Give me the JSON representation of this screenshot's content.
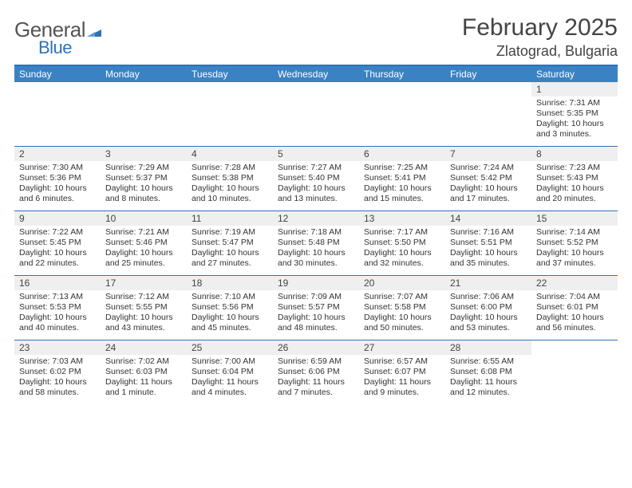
{
  "logo": {
    "text1": "General",
    "text2": "Blue",
    "flag_color": "#2e72b8"
  },
  "header": {
    "title": "February 2025",
    "location": "Zlatograd, Bulgaria"
  },
  "colors": {
    "header_bar": "#3b82c4",
    "header_text": "#ffffff",
    "rule": "#2e72b8",
    "daynum_bg": "#efefef",
    "text": "#333333"
  },
  "dow": [
    "Sunday",
    "Monday",
    "Tuesday",
    "Wednesday",
    "Thursday",
    "Friday",
    "Saturday"
  ],
  "weeks": [
    [
      {
        "n": "",
        "sunrise": "",
        "sunset": "",
        "daylight": ""
      },
      {
        "n": "",
        "sunrise": "",
        "sunset": "",
        "daylight": ""
      },
      {
        "n": "",
        "sunrise": "",
        "sunset": "",
        "daylight": ""
      },
      {
        "n": "",
        "sunrise": "",
        "sunset": "",
        "daylight": ""
      },
      {
        "n": "",
        "sunrise": "",
        "sunset": "",
        "daylight": ""
      },
      {
        "n": "",
        "sunrise": "",
        "sunset": "",
        "daylight": ""
      },
      {
        "n": "1",
        "sunrise": "Sunrise: 7:31 AM",
        "sunset": "Sunset: 5:35 PM",
        "daylight": "Daylight: 10 hours and 3 minutes."
      }
    ],
    [
      {
        "n": "2",
        "sunrise": "Sunrise: 7:30 AM",
        "sunset": "Sunset: 5:36 PM",
        "daylight": "Daylight: 10 hours and 6 minutes."
      },
      {
        "n": "3",
        "sunrise": "Sunrise: 7:29 AM",
        "sunset": "Sunset: 5:37 PM",
        "daylight": "Daylight: 10 hours and 8 minutes."
      },
      {
        "n": "4",
        "sunrise": "Sunrise: 7:28 AM",
        "sunset": "Sunset: 5:38 PM",
        "daylight": "Daylight: 10 hours and 10 minutes."
      },
      {
        "n": "5",
        "sunrise": "Sunrise: 7:27 AM",
        "sunset": "Sunset: 5:40 PM",
        "daylight": "Daylight: 10 hours and 13 minutes."
      },
      {
        "n": "6",
        "sunrise": "Sunrise: 7:25 AM",
        "sunset": "Sunset: 5:41 PM",
        "daylight": "Daylight: 10 hours and 15 minutes."
      },
      {
        "n": "7",
        "sunrise": "Sunrise: 7:24 AM",
        "sunset": "Sunset: 5:42 PM",
        "daylight": "Daylight: 10 hours and 17 minutes."
      },
      {
        "n": "8",
        "sunrise": "Sunrise: 7:23 AM",
        "sunset": "Sunset: 5:43 PM",
        "daylight": "Daylight: 10 hours and 20 minutes."
      }
    ],
    [
      {
        "n": "9",
        "sunrise": "Sunrise: 7:22 AM",
        "sunset": "Sunset: 5:45 PM",
        "daylight": "Daylight: 10 hours and 22 minutes."
      },
      {
        "n": "10",
        "sunrise": "Sunrise: 7:21 AM",
        "sunset": "Sunset: 5:46 PM",
        "daylight": "Daylight: 10 hours and 25 minutes."
      },
      {
        "n": "11",
        "sunrise": "Sunrise: 7:19 AM",
        "sunset": "Sunset: 5:47 PM",
        "daylight": "Daylight: 10 hours and 27 minutes."
      },
      {
        "n": "12",
        "sunrise": "Sunrise: 7:18 AM",
        "sunset": "Sunset: 5:48 PM",
        "daylight": "Daylight: 10 hours and 30 minutes."
      },
      {
        "n": "13",
        "sunrise": "Sunrise: 7:17 AM",
        "sunset": "Sunset: 5:50 PM",
        "daylight": "Daylight: 10 hours and 32 minutes."
      },
      {
        "n": "14",
        "sunrise": "Sunrise: 7:16 AM",
        "sunset": "Sunset: 5:51 PM",
        "daylight": "Daylight: 10 hours and 35 minutes."
      },
      {
        "n": "15",
        "sunrise": "Sunrise: 7:14 AM",
        "sunset": "Sunset: 5:52 PM",
        "daylight": "Daylight: 10 hours and 37 minutes."
      }
    ],
    [
      {
        "n": "16",
        "sunrise": "Sunrise: 7:13 AM",
        "sunset": "Sunset: 5:53 PM",
        "daylight": "Daylight: 10 hours and 40 minutes."
      },
      {
        "n": "17",
        "sunrise": "Sunrise: 7:12 AM",
        "sunset": "Sunset: 5:55 PM",
        "daylight": "Daylight: 10 hours and 43 minutes."
      },
      {
        "n": "18",
        "sunrise": "Sunrise: 7:10 AM",
        "sunset": "Sunset: 5:56 PM",
        "daylight": "Daylight: 10 hours and 45 minutes."
      },
      {
        "n": "19",
        "sunrise": "Sunrise: 7:09 AM",
        "sunset": "Sunset: 5:57 PM",
        "daylight": "Daylight: 10 hours and 48 minutes."
      },
      {
        "n": "20",
        "sunrise": "Sunrise: 7:07 AM",
        "sunset": "Sunset: 5:58 PM",
        "daylight": "Daylight: 10 hours and 50 minutes."
      },
      {
        "n": "21",
        "sunrise": "Sunrise: 7:06 AM",
        "sunset": "Sunset: 6:00 PM",
        "daylight": "Daylight: 10 hours and 53 minutes."
      },
      {
        "n": "22",
        "sunrise": "Sunrise: 7:04 AM",
        "sunset": "Sunset: 6:01 PM",
        "daylight": "Daylight: 10 hours and 56 minutes."
      }
    ],
    [
      {
        "n": "23",
        "sunrise": "Sunrise: 7:03 AM",
        "sunset": "Sunset: 6:02 PM",
        "daylight": "Daylight: 10 hours and 58 minutes."
      },
      {
        "n": "24",
        "sunrise": "Sunrise: 7:02 AM",
        "sunset": "Sunset: 6:03 PM",
        "daylight": "Daylight: 11 hours and 1 minute."
      },
      {
        "n": "25",
        "sunrise": "Sunrise: 7:00 AM",
        "sunset": "Sunset: 6:04 PM",
        "daylight": "Daylight: 11 hours and 4 minutes."
      },
      {
        "n": "26",
        "sunrise": "Sunrise: 6:59 AM",
        "sunset": "Sunset: 6:06 PM",
        "daylight": "Daylight: 11 hours and 7 minutes."
      },
      {
        "n": "27",
        "sunrise": "Sunrise: 6:57 AM",
        "sunset": "Sunset: 6:07 PM",
        "daylight": "Daylight: 11 hours and 9 minutes."
      },
      {
        "n": "28",
        "sunrise": "Sunrise: 6:55 AM",
        "sunset": "Sunset: 6:08 PM",
        "daylight": "Daylight: 11 hours and 12 minutes."
      },
      {
        "n": "",
        "sunrise": "",
        "sunset": "",
        "daylight": ""
      }
    ]
  ]
}
